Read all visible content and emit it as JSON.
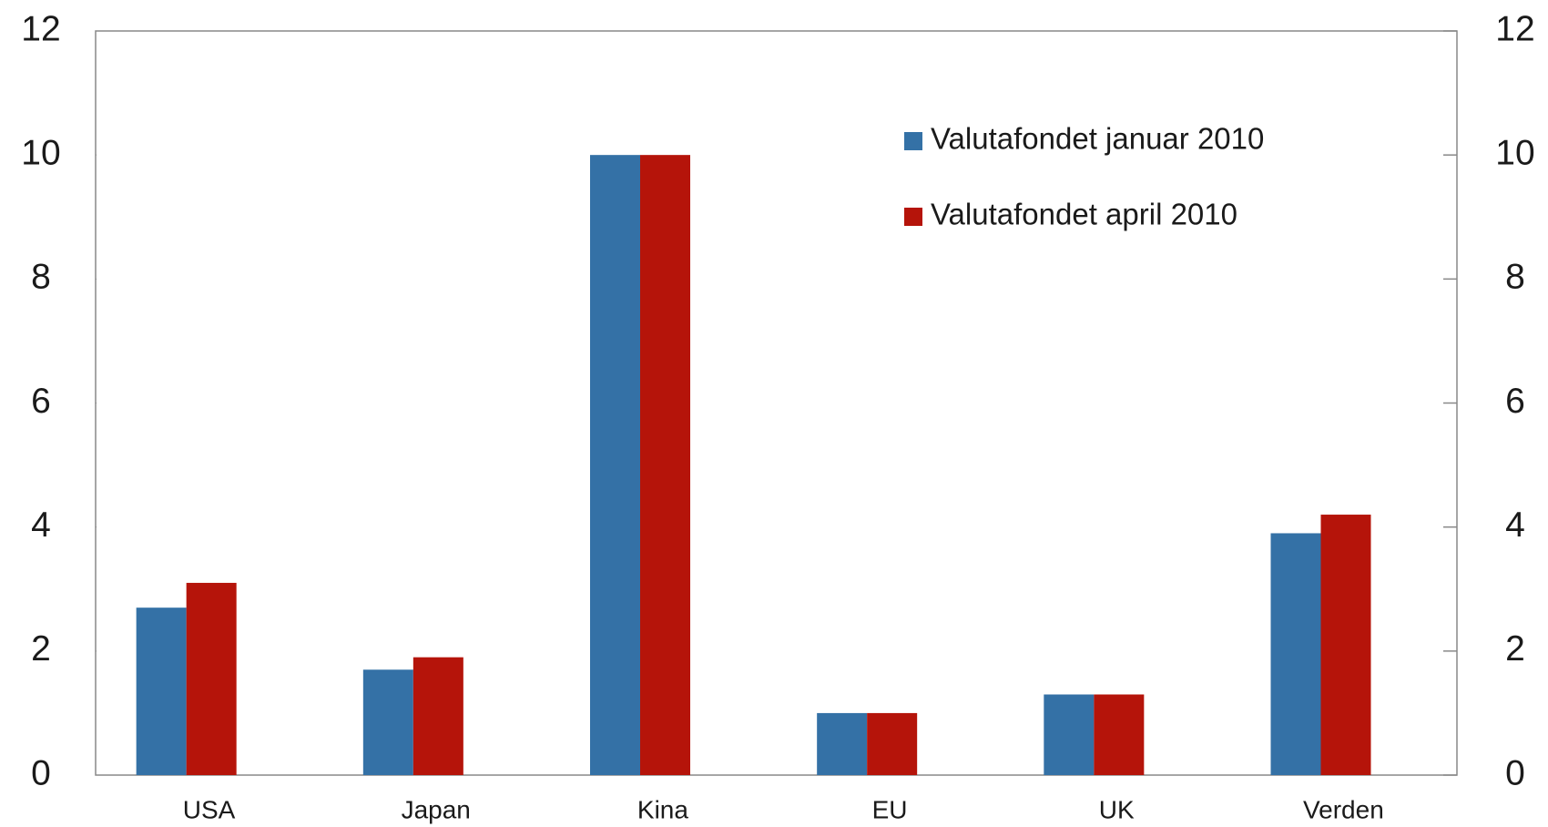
{
  "chart_data": {
    "type": "bar",
    "categories": [
      "USA",
      "Japan",
      "Kina",
      "EU",
      "UK",
      "Verden"
    ],
    "series": [
      {
        "name": "Valutafondet januar 2010",
        "color": "#3471a6",
        "values": [
          2.7,
          1.7,
          10,
          1.0,
          1.3,
          3.9
        ]
      },
      {
        "name": "Valutafondet april 2010",
        "color": "#b5140a",
        "values": [
          3.1,
          1.9,
          10,
          1.0,
          1.3,
          4.2
        ]
      }
    ],
    "ylim": [
      0,
      12
    ],
    "yticks": [
      0,
      2,
      4,
      6,
      8,
      10,
      12
    ],
    "y2lim": [
      0,
      12
    ],
    "y2ticks": [
      0,
      2,
      4,
      6,
      8,
      10,
      12
    ]
  }
}
